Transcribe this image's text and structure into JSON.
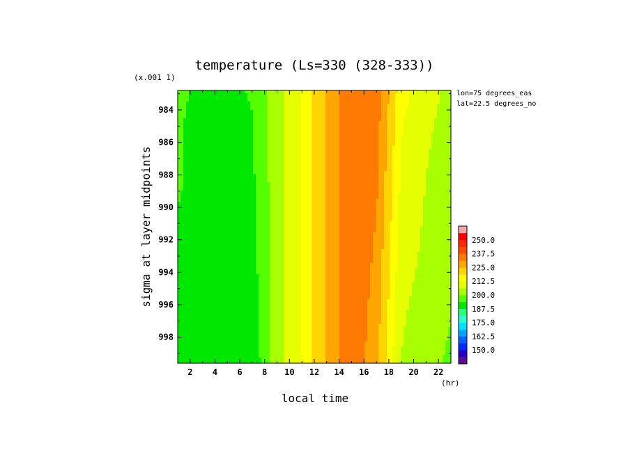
{
  "chart_data": {
    "type": "heatmap",
    "title": "temperature (Ls=330 (328-333))",
    "xlabel": "local time",
    "ylabel": "sigma at layer midpoints",
    "x_unit": "(hr)",
    "y_scale_note": "(x.001 1)",
    "annotations": [
      "lon=75 degrees_eas",
      "lat=22.5 degrees_no"
    ],
    "xlim": [
      1,
      23
    ],
    "ylim": [
      982.8,
      999.6
    ],
    "x_ticks": [
      "2",
      "4",
      "6",
      "8",
      "10",
      "12",
      "14",
      "16",
      "18",
      "20",
      "22"
    ],
    "y_ticks": [
      "984",
      "986",
      "988",
      "990",
      "992",
      "994",
      "996",
      "998"
    ],
    "x": [
      1,
      3,
      5,
      7,
      9,
      11,
      13,
      15,
      17,
      19,
      21,
      23
    ],
    "y": [
      983,
      985,
      987,
      989,
      991,
      993,
      995,
      997,
      999.5
    ],
    "values": [
      [
        194.0,
        193.5,
        193.0,
        194.0,
        204.0,
        213.5,
        226.0,
        237.0,
        235.0,
        215.0,
        208.0,
        205.0
      ],
      [
        194.0,
        193.0,
        193.0,
        193.5,
        204.0,
        213.5,
        226.0,
        237.0,
        234.0,
        213.0,
        207.0,
        204.5
      ],
      [
        194.0,
        193.0,
        192.5,
        193.0,
        204.0,
        213.5,
        226.0,
        237.0,
        233.0,
        212.0,
        206.5,
        204.0
      ],
      [
        194.0,
        192.5,
        192.0,
        192.5,
        204.0,
        213.5,
        226.0,
        237.0,
        232.0,
        211.0,
        206.0,
        203.0
      ],
      [
        193.5,
        192.5,
        191.5,
        192.0,
        204.0,
        213.5,
        226.0,
        237.0,
        231.0,
        210.0,
        205.5,
        202.5
      ],
      [
        193.0,
        192.0,
        191.5,
        191.5,
        204.0,
        213.5,
        226.0,
        237.0,
        230.0,
        209.0,
        205.0,
        202.0
      ],
      [
        192.5,
        191.5,
        191.0,
        191.0,
        204.0,
        213.5,
        226.0,
        237.0,
        229.0,
        208.0,
        204.0,
        201.0
      ],
      [
        192.0,
        190.5,
        190.0,
        190.5,
        204.0,
        213.5,
        226.0,
        237.0,
        228.0,
        207.0,
        203.0,
        200.0
      ],
      [
        191.0,
        189.0,
        188.0,
        189.0,
        204.0,
        213.5,
        226.0,
        237.0,
        226.0,
        206.0,
        202.0,
        199.0
      ]
    ],
    "colorbar": {
      "labels": [
        "250.0",
        "237.5",
        "225.0",
        "212.5",
        "200.0",
        "187.5",
        "175.0",
        "162.5",
        "150.0"
      ],
      "levels": [
        143.75,
        150.0,
        156.25,
        162.5,
        168.75,
        175.0,
        181.25,
        187.5,
        193.75,
        200.0,
        206.25,
        212.5,
        218.75,
        225.0,
        231.25,
        237.5,
        243.75,
        250.0,
        256.25
      ],
      "colors": [
        "#5a0f96",
        "#2a00c8",
        "#0028ff",
        "#0060ff",
        "#00a6ff",
        "#00e0ff",
        "#2bfcc8",
        "#2aff7c",
        "#00e800",
        "#55ff00",
        "#a8ff00",
        "#e6ff00",
        "#ffff00",
        "#ffd400",
        "#ffa500",
        "#ff7a00",
        "#ff4c00",
        "#ff2600",
        "#ff0000",
        "#f5a6a6"
      ]
    }
  }
}
